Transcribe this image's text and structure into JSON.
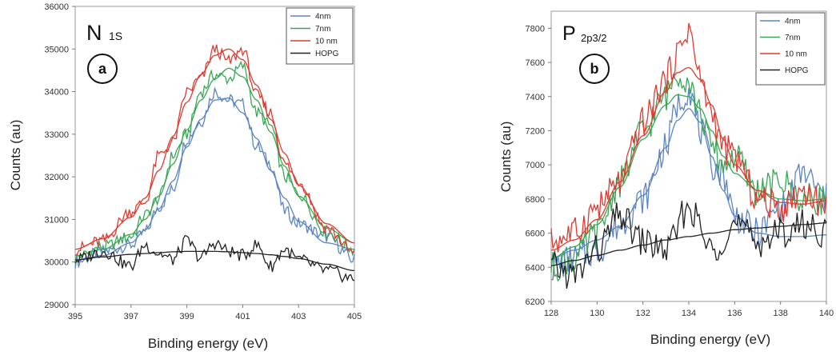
{
  "chart_data": [
    {
      "type": "line",
      "title": "N",
      "title_sub": "1S",
      "badge": "a",
      "xlabel": "Binding energy (eV)",
      "ylabel": "Counts  (au)",
      "xlim": [
        395,
        405
      ],
      "ylim": [
        29000,
        36000
      ],
      "xticks": [
        "395",
        "397",
        "399",
        "401",
        "403",
        "405"
      ],
      "yticks": [
        "29000",
        "30000",
        "31000",
        "32000",
        "33000",
        "34000",
        "35000",
        "36000"
      ],
      "legend_position": "top-right",
      "series": [
        {
          "name": "4nm",
          "color": "#5b84c4",
          "x": [
            395,
            396,
            397,
            397.5,
            398,
            398.5,
            399,
            399.5,
            400,
            400.5,
            401,
            401.5,
            402,
            402.5,
            403,
            404,
            405
          ],
          "fit": [
            30050,
            30150,
            30450,
            30750,
            31250,
            31900,
            32700,
            33350,
            33800,
            33850,
            33500,
            32900,
            32150,
            31500,
            30950,
            30450,
            30300
          ],
          "raw": [
            30000,
            30250,
            30400,
            30700,
            31300,
            31700,
            32900,
            33300,
            34000,
            33800,
            33700,
            32700,
            32300,
            31200,
            30900,
            30600,
            30050
          ]
        },
        {
          "name": "7nm",
          "color": "#3aa655",
          "x": [
            395,
            396,
            397,
            397.5,
            398,
            398.5,
            399,
            399.5,
            400,
            400.5,
            401,
            401.5,
            402,
            402.5,
            403,
            404,
            405
          ],
          "fit": [
            30150,
            30300,
            30650,
            31000,
            31550,
            32300,
            33100,
            33800,
            34300,
            34550,
            34350,
            33800,
            33050,
            32250,
            31550,
            30800,
            30450
          ],
          "raw": [
            30100,
            30350,
            30600,
            31100,
            31500,
            32500,
            33000,
            34000,
            34400,
            34300,
            34600,
            33500,
            33200,
            32000,
            31600,
            30700,
            30300
          ]
        },
        {
          "name": "10 nm",
          "color": "#e03a30",
          "x": [
            395,
            396,
            397,
            397.5,
            398,
            398.5,
            399,
            399.5,
            400,
            400.5,
            401,
            401.5,
            402,
            402.5,
            403,
            404,
            405
          ],
          "fit": [
            30300,
            30550,
            31050,
            31500,
            32150,
            32950,
            33750,
            34400,
            34850,
            35000,
            34750,
            34150,
            33350,
            32550,
            31800,
            30900,
            30450
          ],
          "raw": [
            30300,
            30500,
            31200,
            31400,
            32500,
            32800,
            34000,
            34300,
            35000,
            34700,
            35000,
            33900,
            33500,
            32300,
            31900,
            30800,
            30200
          ]
        },
        {
          "name": "HOPG",
          "color": "#222222",
          "x": [
            395,
            396,
            397,
            397.5,
            398,
            398.5,
            399,
            399.5,
            400,
            400.5,
            401,
            401.5,
            402,
            402.5,
            403,
            404,
            405
          ],
          "fit": [
            30050,
            30120,
            30180,
            30200,
            30220,
            30240,
            30250,
            30250,
            30250,
            30240,
            30220,
            30200,
            30170,
            30130,
            30080,
            29950,
            29800
          ],
          "raw": [
            30050,
            30250,
            29900,
            30400,
            30200,
            30050,
            30500,
            30100,
            30450,
            30250,
            30150,
            30400,
            29900,
            30300,
            30050,
            29800,
            29600
          ]
        }
      ]
    },
    {
      "type": "line",
      "title": "P",
      "title_sub": "2p3/2",
      "badge": "b",
      "xlabel": "Binding energy (eV)",
      "ylabel": "Counts   (au)",
      "xlim": [
        128,
        140
      ],
      "ylim": [
        6200,
        7900
      ],
      "xticks": [
        "128",
        "130",
        "132",
        "134",
        "136",
        "138",
        "140"
      ],
      "yticks": [
        "6200",
        "6400",
        "6600",
        "6800",
        "7000",
        "7200",
        "7400",
        "7600",
        "7800"
      ],
      "legend_position": "top-right",
      "series": [
        {
          "name": "4nm",
          "color": "#5b84c4",
          "x": [
            128,
            129,
            130,
            131,
            132,
            133,
            133.5,
            134,
            134.5,
            135,
            135.5,
            136,
            137,
            138,
            139,
            140
          ],
          "fit": [
            6450,
            6500,
            6560,
            6640,
            6820,
            7100,
            7260,
            7330,
            7250,
            7050,
            6850,
            6700,
            6600,
            6580,
            6580,
            6590
          ],
          "raw": [
            6400,
            6450,
            6500,
            6650,
            6800,
            7100,
            7350,
            7450,
            7200,
            7000,
            6950,
            6700,
            6600,
            6750,
            6950,
            6800
          ]
        },
        {
          "name": "7nm",
          "color": "#3aa655",
          "x": [
            128,
            129,
            130,
            131,
            132,
            133,
            133.5,
            134,
            134.5,
            135,
            135.5,
            136,
            137,
            138,
            139,
            140
          ],
          "fit": [
            6450,
            6520,
            6650,
            6870,
            7150,
            7350,
            7410,
            7400,
            7330,
            7200,
            7050,
            6950,
            6850,
            6800,
            6790,
            6800
          ],
          "raw": [
            6400,
            6450,
            6600,
            6900,
            7200,
            7400,
            7550,
            7500,
            7300,
            7100,
            7000,
            7050,
            6850,
            6900,
            6800,
            6800
          ]
        },
        {
          "name": "10 nm",
          "color": "#e03a30",
          "x": [
            128,
            129,
            130,
            131,
            132,
            133,
            133.5,
            134,
            134.5,
            135,
            135.5,
            136,
            137,
            138,
            139,
            140
          ],
          "fit": [
            6500,
            6560,
            6680,
            6900,
            7170,
            7430,
            7540,
            7570,
            7500,
            7350,
            7150,
            7000,
            6850,
            6780,
            6770,
            6790
          ],
          "raw": [
            6550,
            6600,
            6750,
            6900,
            7250,
            7500,
            7650,
            7800,
            7500,
            7300,
            7100,
            7050,
            6800,
            6750,
            6850,
            6750
          ]
        },
        {
          "name": "HOPG",
          "color": "#222222",
          "x": [
            128,
            129,
            130,
            131,
            132,
            133,
            134,
            135,
            136,
            137,
            138,
            139,
            140
          ],
          "fit": [
            6410,
            6440,
            6470,
            6500,
            6530,
            6560,
            6580,
            6600,
            6620,
            6630,
            6640,
            6650,
            6660
          ],
          "raw": [
            6400,
            6350,
            6500,
            6700,
            6550,
            6500,
            6750,
            6500,
            6650,
            6550,
            6600,
            6650,
            6600
          ]
        }
      ]
    }
  ]
}
